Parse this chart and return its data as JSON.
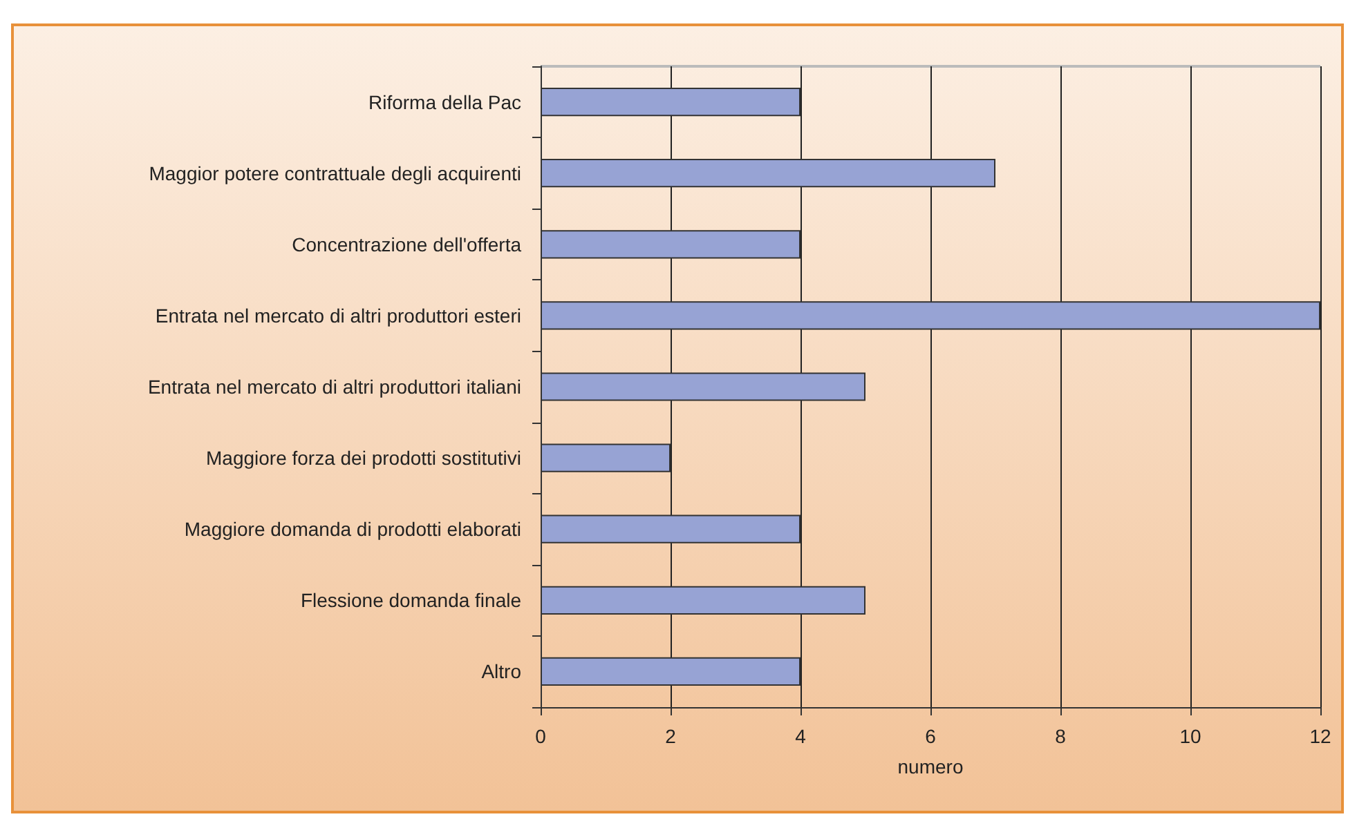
{
  "chart_data": {
    "type": "bar",
    "orientation": "horizontal",
    "xlabel": "numero",
    "categories": [
      "Riforma della Pac",
      "Maggior potere contrattuale degli acquirenti",
      "Concentrazione dell'offerta",
      "Entrata nel mercato di altri produttori esteri",
      "Entrata nel mercato di altri produttori italiani",
      "Maggiore forza dei prodotti sostitutivi",
      "Maggiore domanda di prodotti elaborati",
      "Flessione domanda finale",
      "Altro"
    ],
    "values": [
      4,
      7,
      4,
      12,
      5,
      2,
      4,
      5,
      4
    ],
    "color": "#97a3d4",
    "xlim": [
      0,
      12
    ],
    "xticks": [
      0,
      2,
      4,
      6,
      8,
      10,
      12
    ],
    "grid": "x"
  }
}
